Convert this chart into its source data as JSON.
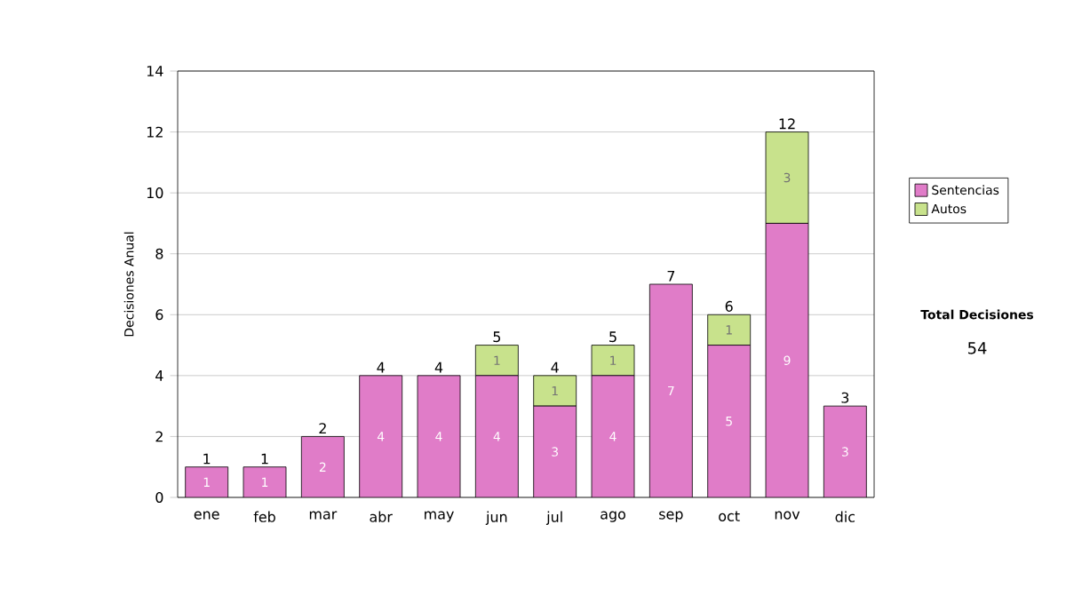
{
  "chart_data": {
    "type": "bar",
    "stacked": true,
    "ylabel": "Decisiones Anual",
    "categories": [
      "ene",
      "feb",
      "mar",
      "abr",
      "may",
      "jun",
      "jul",
      "ago",
      "sep",
      "oct",
      "nov",
      "dic"
    ],
    "series": [
      {
        "name": "Sentencias",
        "color": "#e07cc8",
        "values": [
          1,
          1,
          2,
          4,
          4,
          4,
          3,
          4,
          7,
          5,
          9,
          3
        ],
        "value_labels": [
          "1",
          "1",
          "2",
          "4",
          "4",
          "4",
          "3",
          "4",
          "7",
          "5",
          "9",
          "3"
        ]
      },
      {
        "name": "Autos",
        "color": "#c8e28c",
        "values": [
          0,
          0,
          0,
          0,
          0,
          1,
          1,
          1,
          0,
          1,
          3,
          0
        ],
        "value_labels": [
          null,
          null,
          null,
          null,
          null,
          "1",
          "1",
          "1",
          null,
          "1",
          "3",
          null
        ]
      }
    ],
    "totals": [
      "1",
      "1",
      "2",
      "4",
      "4",
      "5",
      "4",
      "5",
      "7",
      "6",
      "12",
      "3"
    ],
    "ylim": [
      0,
      14
    ],
    "yticks": [
      0,
      2,
      4,
      6,
      8,
      10,
      12,
      14
    ],
    "grid": "y",
    "legend": "right",
    "annotations": [
      "Total Decisiones",
      "54"
    ]
  }
}
